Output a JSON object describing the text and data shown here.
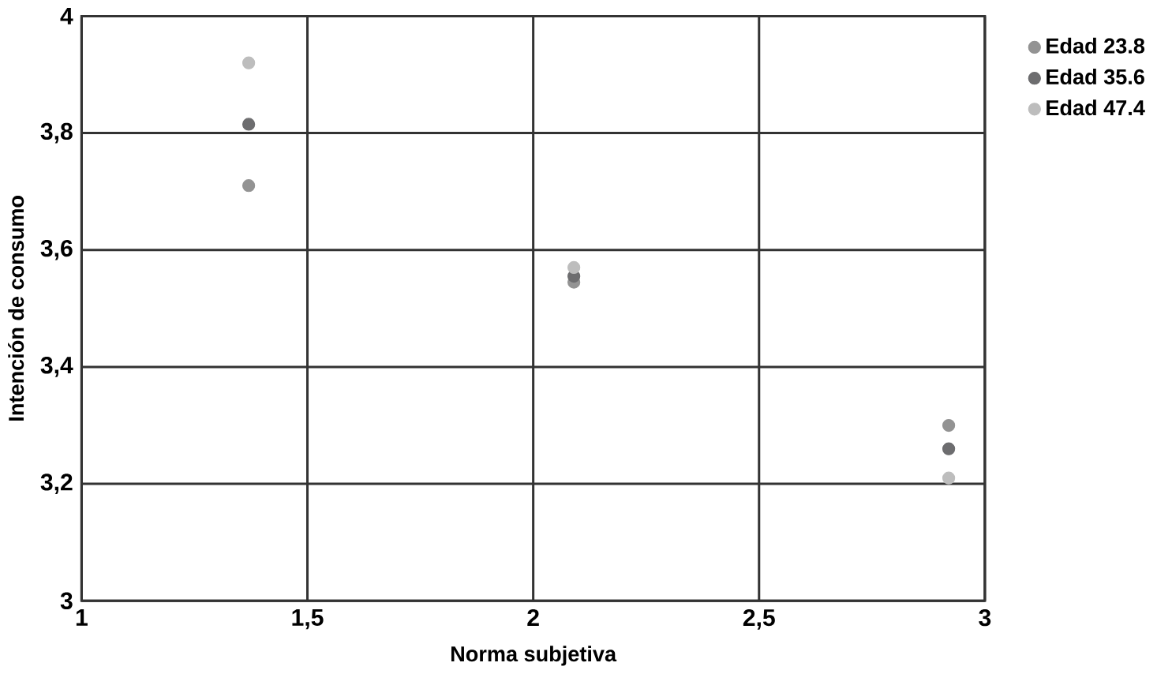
{
  "chart_data": {
    "type": "scatter",
    "xlabel": "Norma subjetiva",
    "ylabel": "Intención de consumo",
    "xlim": [
      1,
      3
    ],
    "xticks": [
      1,
      {
        "value": 1.5,
        "label": "1,5"
      },
      2,
      {
        "value": 2.5,
        "label": "2,5"
      },
      3
    ],
    "ylim": [
      3,
      4
    ],
    "yticks": [
      3,
      {
        "value": 3.2,
        "label": "3,2"
      },
      {
        "value": 3.4,
        "label": "3,4"
      },
      {
        "value": 3.6,
        "label": "3,6"
      },
      {
        "value": 3.8,
        "label": "3,8"
      },
      4
    ],
    "grid": true,
    "legend": "right",
    "marker": "circle",
    "series": [
      {
        "name": "Edad 23.8",
        "color": "#939393",
        "x": [
          1.37,
          2.09,
          2.92
        ],
        "values": [
          3.71,
          3.545,
          3.3
        ]
      },
      {
        "name": "Edad 35.6",
        "color": "#6d6d6f",
        "x": [
          1.37,
          2.09,
          2.92
        ],
        "values": [
          3.815,
          3.555,
          3.26
        ]
      },
      {
        "name": "Edad 47.4",
        "color": "#bdbdbd",
        "x": [
          1.37,
          2.09,
          2.92
        ],
        "values": [
          3.92,
          3.57,
          3.21
        ]
      }
    ]
  }
}
